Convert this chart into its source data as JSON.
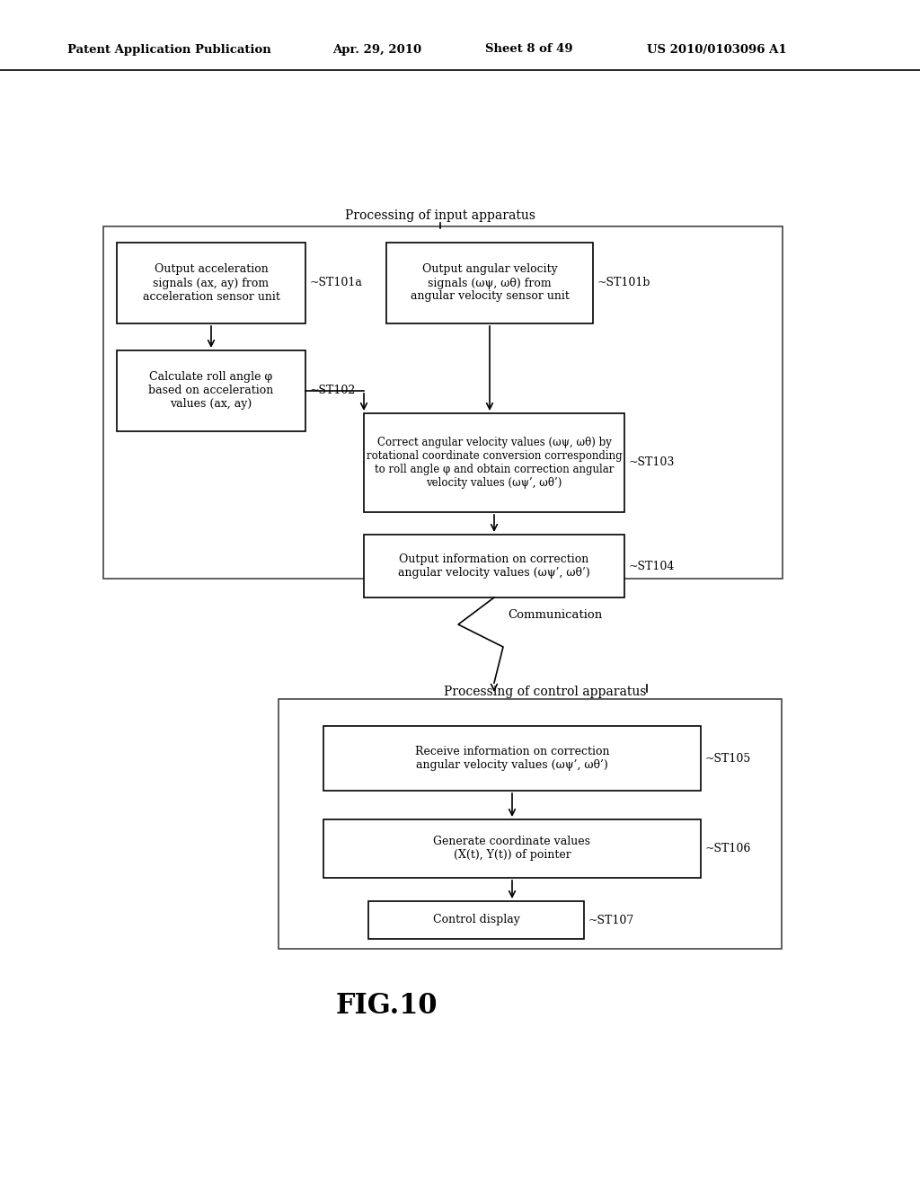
{
  "background_color": "#ffffff",
  "header_text": "Patent Application Publication",
  "header_date": "Apr. 29, 2010",
  "header_sheet": "Sheet 8 of 49",
  "header_patent": "US 2010/0103096 A1",
  "figure_label": "FIG.10",
  "title_input": "Processing of input apparatus",
  "title_control": "Processing of control apparatus",
  "communication_label": "Communication",
  "box_ST101a_text": "Output acceleration\nsignals (ax, ay) from\nacceleration sensor unit",
  "box_ST101b_text": "Output angular velocity\nsignals (ωψ, ωθ) from\nangular velocity sensor unit",
  "box_ST102_text": "Calculate roll angle φ\nbased on acceleration\nvalues (ax, ay)",
  "box_ST103_text": "Correct angular velocity values (ωψ, ωθ) by\nrotational coordinate conversion corresponding\nto roll angle φ and obtain correction angular\nvelocity values (ωψ’, ωθ’)",
  "box_ST104_text": "Output information on correction\nangular velocity values (ωψ’, ωθ’)",
  "box_ST105_text": "Receive information on correction\nangular velocity values (ωψ’, ωθ’)",
  "box_ST106_text": "Generate coordinate values\n(X(t), Y(t)) of pointer",
  "box_ST107_text": "Control display"
}
